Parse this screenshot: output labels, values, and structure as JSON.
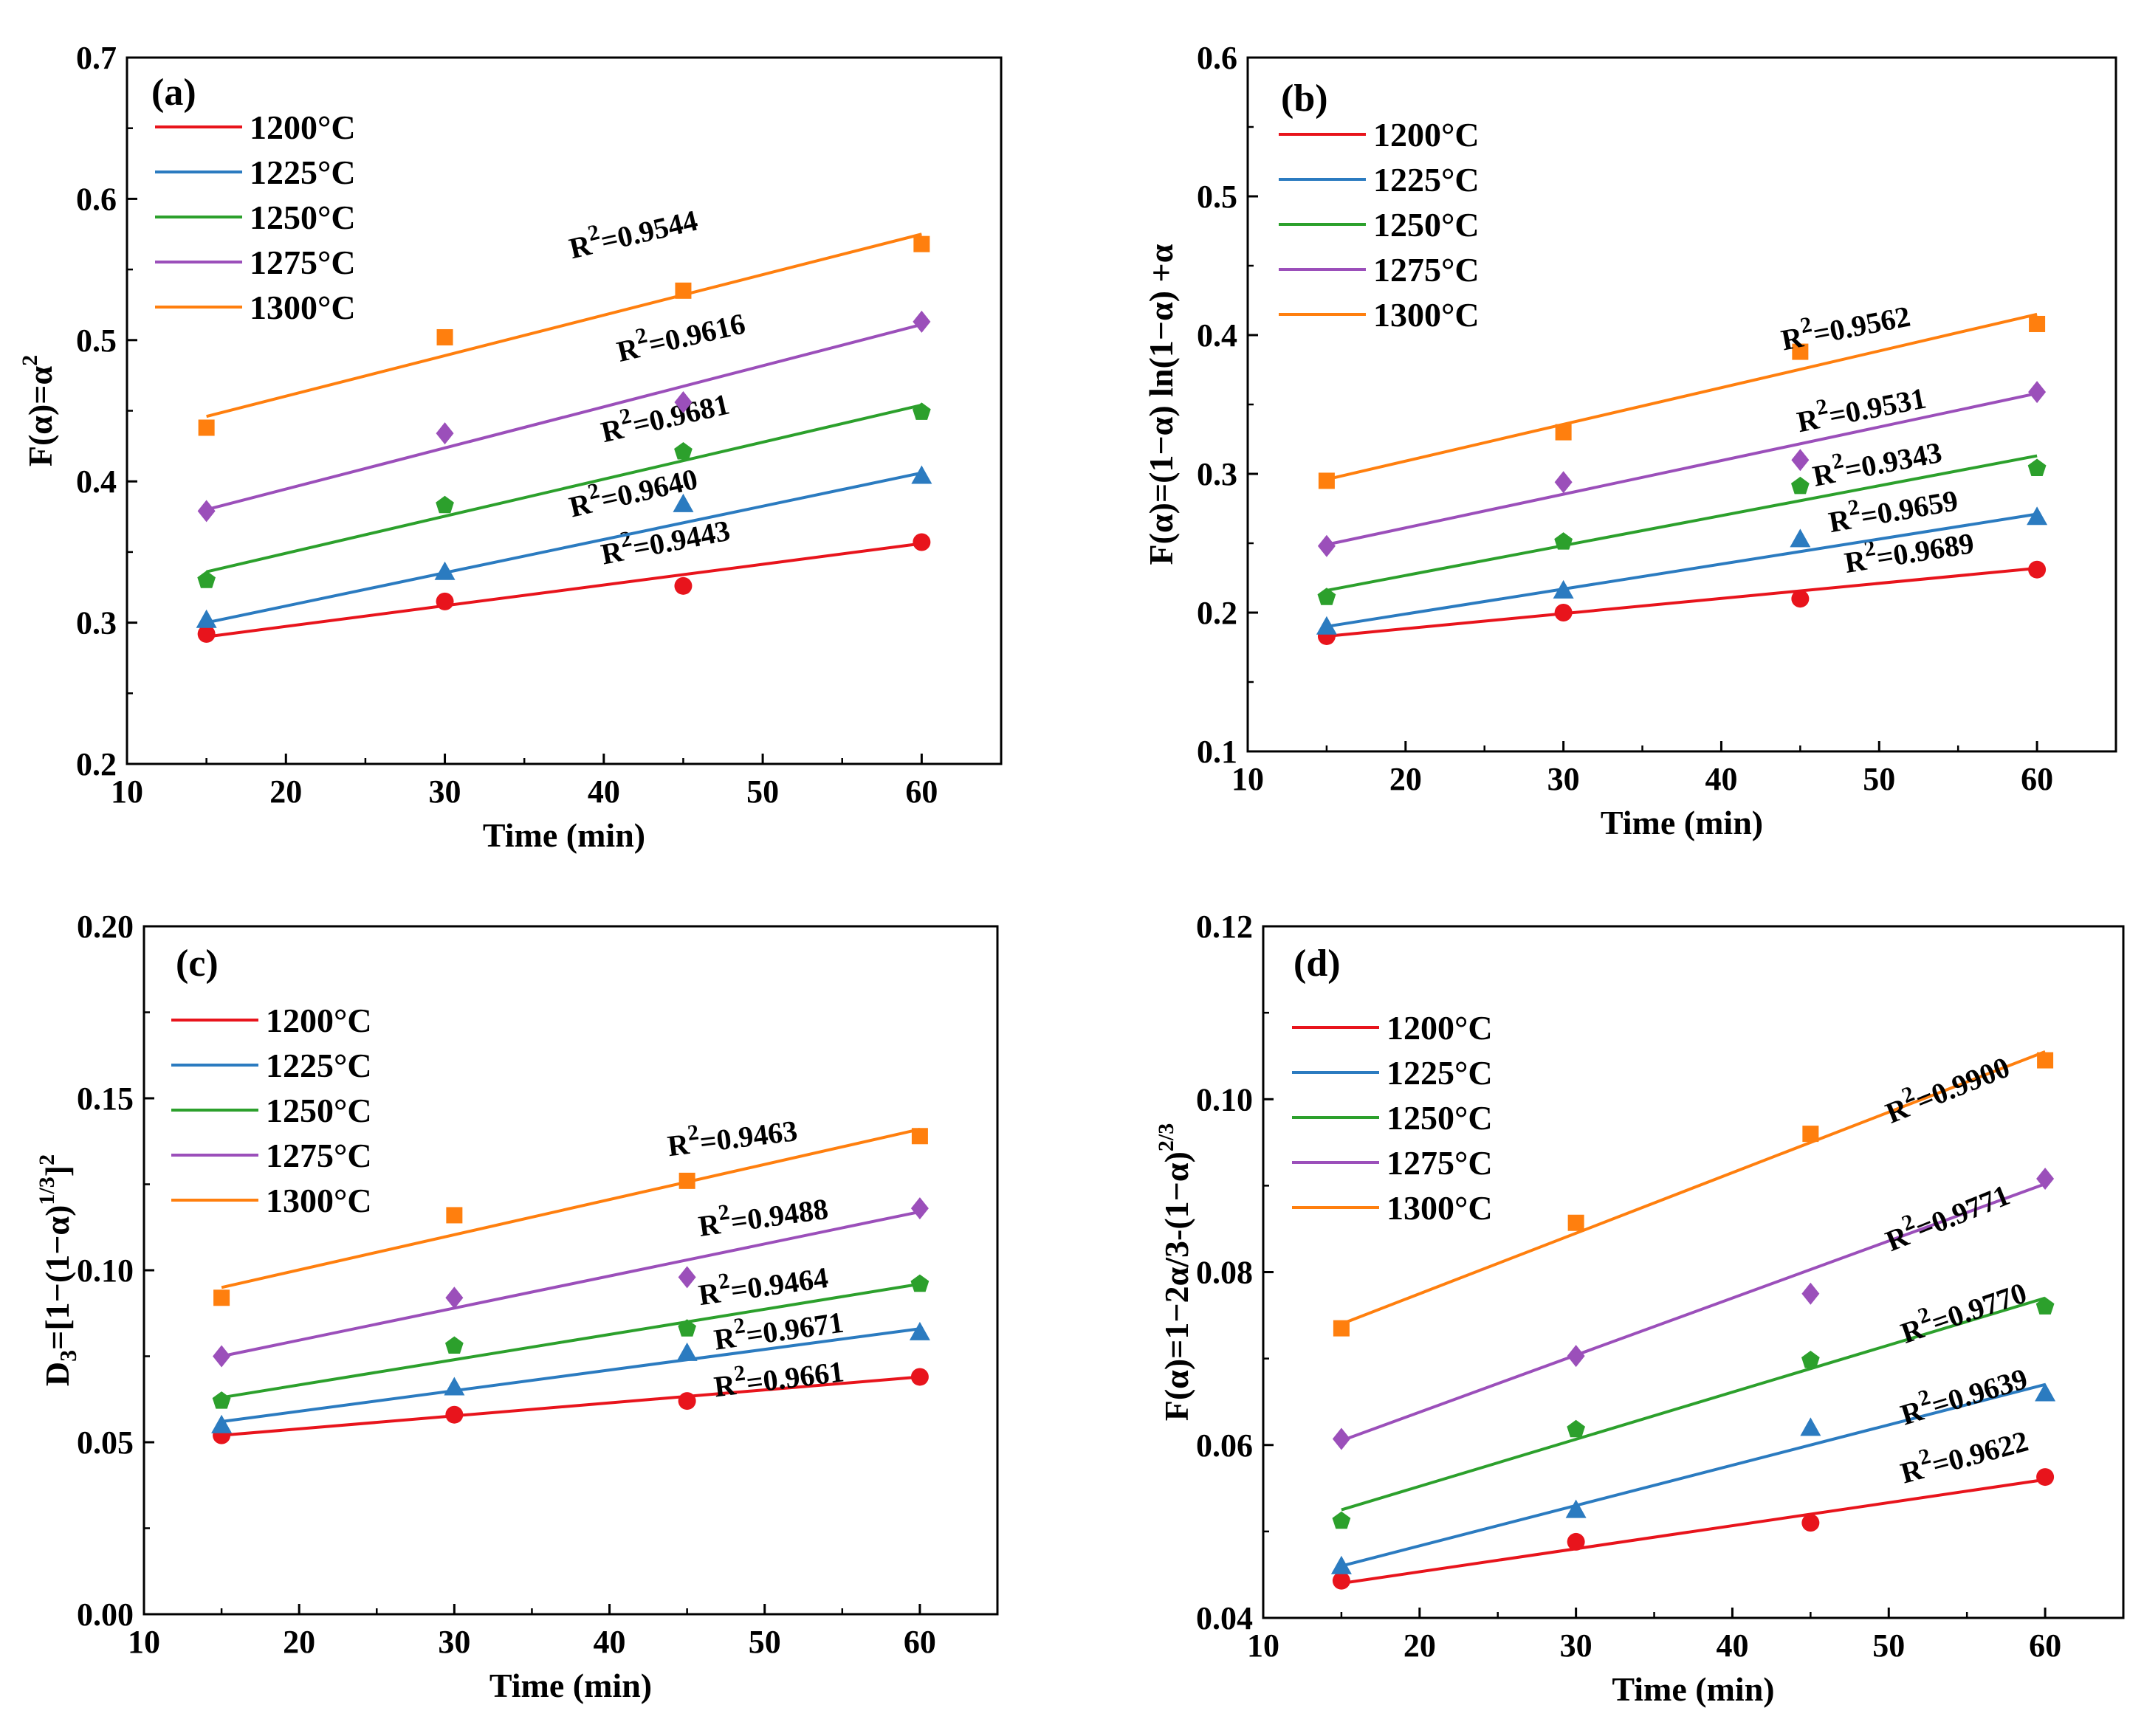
{
  "chart_data": [
    {
      "type": "scatter",
      "panel_label": "(a)",
      "xlabel": "Time (min)",
      "ylabel": "F(α)=α",
      "ylabel_sup": "2",
      "xlim": [
        10,
        65
      ],
      "ylim": [
        0.2,
        0.7
      ],
      "xticks": [
        10,
        20,
        30,
        40,
        50,
        60
      ],
      "yticks": [
        0.2,
        0.3,
        0.4,
        0.5,
        0.6,
        0.7
      ],
      "ytick_labels": [
        "0.2",
        "0.3",
        "0.4",
        "0.5",
        "0.6",
        "0.7"
      ],
      "x": [
        15,
        30,
        45,
        60
      ],
      "legend_position": "top-left",
      "series": [
        {
          "name": "1200°C",
          "color": "#e8141c",
          "marker": "circle",
          "values": [
            0.292,
            0.315,
            0.326,
            0.357
          ],
          "fit": [
            0.29,
            0.356
          ],
          "r2_label": "R",
          "r2_sup": "2",
          "r2_value": "=0.9443",
          "r2_anchor": [
            44,
            0.35
          ],
          "r2_angle": -11
        },
        {
          "name": "1225°C",
          "color": "#2b7bc0",
          "marker": "triangle",
          "values": [
            0.302,
            0.336,
            0.384,
            0.404
          ],
          "fit": [
            0.3,
            0.406
          ],
          "r2_label": "R",
          "r2_sup": "2",
          "r2_value": "=0.9640",
          "r2_anchor": [
            42,
            0.385
          ],
          "r2_angle": -13
        },
        {
          "name": "1250°C",
          "color": "#2ca02c",
          "marker": "pentagon",
          "values": [
            0.33,
            0.383,
            0.421,
            0.449
          ],
          "fit": [
            0.336,
            0.454
          ],
          "r2_label": "R",
          "r2_sup": "2",
          "r2_value": "=0.9681",
          "r2_anchor": [
            44,
            0.438
          ],
          "r2_angle": -13
        },
        {
          "name": "1275°C",
          "color": "#9b4fba",
          "marker": "diamond",
          "values": [
            0.379,
            0.434,
            0.456,
            0.513
          ],
          "fit": [
            0.38,
            0.511
          ],
          "r2_label": "R",
          "r2_sup": "2",
          "r2_value": "=0.9616",
          "r2_anchor": [
            45,
            0.495
          ],
          "r2_angle": -13
        },
        {
          "name": "1300°C",
          "color": "#ff7f0e",
          "marker": "square",
          "values": [
            0.438,
            0.502,
            0.535,
            0.568
          ],
          "fit": [
            0.446,
            0.575
          ],
          "r2_label": "R",
          "r2_sup": "2",
          "r2_value": "=0.9544",
          "r2_anchor": [
            42,
            0.568
          ],
          "r2_angle": -13
        }
      ]
    },
    {
      "type": "scatter",
      "panel_label": "(b)",
      "xlabel": "Time (min)",
      "ylabel": "F(α)=(1−α) ln(1−α) +α",
      "ylabel_sup": "",
      "xlim": [
        10,
        65
      ],
      "ylim": [
        0.1,
        0.6
      ],
      "xticks": [
        10,
        20,
        30,
        40,
        50,
        60
      ],
      "yticks": [
        0.1,
        0.2,
        0.3,
        0.4,
        0.5,
        0.6
      ],
      "ytick_labels": [
        "0.1",
        "0.2",
        "0.3",
        "0.4",
        "0.5",
        "0.6"
      ],
      "x": [
        15,
        30,
        45,
        60
      ],
      "legend_position": "top-left",
      "series": [
        {
          "name": "1200°C",
          "color": "#e8141c",
          "marker": "circle",
          "values": [
            0.183,
            0.2,
            0.21,
            0.231
          ],
          "fit": [
            0.183,
            0.232
          ],
          "r2_label": "R",
          "r2_sup": "2",
          "r2_value": "=0.9689",
          "r2_anchor": [
            52,
            0.236
          ],
          "r2_angle": -9
        },
        {
          "name": "1225°C",
          "color": "#2b7bc0",
          "marker": "triangle",
          "values": [
            0.19,
            0.216,
            0.253,
            0.269
          ],
          "fit": [
            0.19,
            0.271
          ],
          "r2_label": "R",
          "r2_sup": "2",
          "r2_value": "=0.9659",
          "r2_anchor": [
            51,
            0.266
          ],
          "r2_angle": -10
        },
        {
          "name": "1250°C",
          "color": "#2ca02c",
          "marker": "pentagon",
          "values": [
            0.211,
            0.251,
            0.291,
            0.304
          ],
          "fit": [
            0.216,
            0.313
          ],
          "r2_label": "R",
          "r2_sup": "2",
          "r2_value": "=0.9343",
          "r2_anchor": [
            50,
            0.3
          ],
          "r2_angle": -11
        },
        {
          "name": "1275°C",
          "color": "#9b4fba",
          "marker": "diamond",
          "values": [
            0.248,
            0.294,
            0.31,
            0.359
          ],
          "fit": [
            0.249,
            0.358
          ],
          "r2_label": "R",
          "r2_sup": "2",
          "r2_value": "=0.9531",
          "r2_anchor": [
            49,
            0.339
          ],
          "r2_angle": -11
        },
        {
          "name": "1300°C",
          "color": "#ff7f0e",
          "marker": "square",
          "values": [
            0.295,
            0.33,
            0.388,
            0.408
          ],
          "fit": [
            0.296,
            0.415
          ],
          "r2_label": "R",
          "r2_sup": "2",
          "r2_value": "=0.9562",
          "r2_anchor": [
            48,
            0.398
          ],
          "r2_angle": -11
        }
      ]
    },
    {
      "type": "scatter",
      "panel_label": "(c)",
      "xlabel": "Time (min)",
      "ylabel": "D",
      "ylabel_sub": "3",
      "ylabel_rest": "=[1−(1−α)",
      "ylabel_sup": "1/3",
      "ylabel_end": "]",
      "ylabel_sup2": "2",
      "xlim": [
        10,
        65
      ],
      "ylim": [
        0.0,
        0.2
      ],
      "xticks": [
        10,
        20,
        30,
        40,
        50,
        60
      ],
      "yticks": [
        0.0,
        0.05,
        0.1,
        0.15,
        0.2
      ],
      "ytick_labels": [
        "0.00",
        "0.05",
        "0.10",
        "0.15",
        "0.20"
      ],
      "x": [
        15,
        30,
        45,
        60
      ],
      "legend_position": "top-left",
      "series": [
        {
          "name": "1200°C",
          "color": "#e8141c",
          "marker": "circle",
          "values": [
            0.052,
            0.058,
            0.062,
            0.069
          ],
          "fit": [
            0.052,
            0.069
          ],
          "r2_label": "R",
          "r2_sup": "2",
          "r2_value": "=0.9661",
          "r2_anchor": [
            51,
            0.0655
          ],
          "r2_angle": -7
        },
        {
          "name": "1225°C",
          "color": "#2b7bc0",
          "marker": "triangle",
          "values": [
            0.055,
            0.066,
            0.076,
            0.082
          ],
          "fit": [
            0.056,
            0.083
          ],
          "r2_label": "R",
          "r2_sup": "2",
          "r2_value": "=0.9671",
          "r2_anchor": [
            51,
            0.0795
          ],
          "r2_angle": -8
        },
        {
          "name": "1250°C",
          "color": "#2ca02c",
          "marker": "pentagon",
          "values": [
            0.062,
            0.078,
            0.083,
            0.096
          ],
          "fit": [
            0.063,
            0.096
          ],
          "r2_label": "R",
          "r2_sup": "2",
          "r2_value": "=0.9464",
          "r2_anchor": [
            50,
            0.0925
          ],
          "r2_angle": -8
        },
        {
          "name": "1275°C",
          "color": "#9b4fba",
          "marker": "diamond",
          "values": [
            0.075,
            0.092,
            0.098,
            0.118
          ],
          "fit": [
            0.075,
            0.117
          ],
          "r2_label": "R",
          "r2_sup": "2",
          "r2_value": "=0.9488",
          "r2_anchor": [
            50,
            0.1125
          ],
          "r2_angle": -8
        },
        {
          "name": "1300°C",
          "color": "#ff7f0e",
          "marker": "square",
          "values": [
            0.092,
            0.116,
            0.126,
            0.139
          ],
          "fit": [
            0.095,
            0.141
          ],
          "r2_label": "R",
          "r2_sup": "2",
          "r2_value": "=0.9463",
          "r2_anchor": [
            48,
            0.1355
          ],
          "r2_angle": -7
        }
      ]
    },
    {
      "type": "scatter",
      "panel_label": "(d)",
      "xlabel": "Time (min)",
      "ylabel": "F(α)=1−2α/3-(1−α)",
      "ylabel_sup": "2/3",
      "xlim": [
        10,
        65
      ],
      "ylim": [
        0.04,
        0.12
      ],
      "xticks": [
        10,
        20,
        30,
        40,
        50,
        60
      ],
      "yticks": [
        0.04,
        0.06,
        0.08,
        0.1,
        0.12
      ],
      "ytick_labels": [
        "0.04",
        "0.06",
        "0.08",
        "0.10",
        "0.12"
      ],
      "x": [
        15,
        30,
        45,
        60
      ],
      "legend_position": "top-left",
      "series": [
        {
          "name": "1200°C",
          "color": "#e8141c",
          "marker": "circle",
          "values": [
            0.0443,
            0.0488,
            0.051,
            0.0563
          ],
          "fit": [
            0.044,
            0.056
          ],
          "r2_label": "R",
          "r2_sup": "2",
          "r2_value": "=0.9622",
          "r2_anchor": [
            55,
            0.0575
          ],
          "r2_angle": -15
        },
        {
          "name": "1225°C",
          "color": "#2b7bc0",
          "marker": "triangle",
          "values": [
            0.046,
            0.0525,
            0.062,
            0.066
          ],
          "fit": [
            0.046,
            0.067
          ],
          "r2_label": "R",
          "r2_sup": "2",
          "r2_value": "=0.9639",
          "r2_anchor": [
            55,
            0.0645
          ],
          "r2_angle": -17
        },
        {
          "name": "1250°C",
          "color": "#2ca02c",
          "marker": "pentagon",
          "values": [
            0.0512,
            0.0618,
            0.0698,
            0.076
          ],
          "fit": [
            0.0525,
            0.077
          ],
          "r2_label": "R",
          "r2_sup": "2",
          "r2_value": "=0.9770",
          "r2_anchor": [
            55,
            0.0742
          ],
          "r2_angle": -19
        },
        {
          "name": "1275°C",
          "color": "#9b4fba",
          "marker": "diamond",
          "values": [
            0.0607,
            0.0703,
            0.0775,
            0.0908
          ],
          "fit": [
            0.0605,
            0.0902
          ],
          "r2_label": "R",
          "r2_sup": "2",
          "r2_value": "=0.9771",
          "r2_anchor": [
            54,
            0.0852
          ],
          "r2_angle": -22
        },
        {
          "name": "1300°C",
          "color": "#ff7f0e",
          "marker": "square",
          "values": [
            0.0735,
            0.0857,
            0.096,
            0.1045
          ],
          "fit": [
            0.074,
            0.1055
          ],
          "r2_label": "R",
          "r2_sup": "2",
          "r2_value": "=0.9900",
          "r2_anchor": [
            54,
            0.1
          ],
          "r2_angle": -22
        }
      ]
    }
  ]
}
